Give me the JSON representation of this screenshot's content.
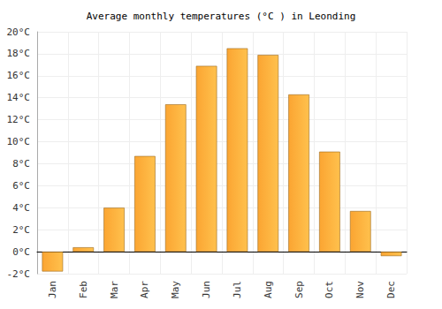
{
  "chart_data": {
    "type": "bar",
    "title": "Average monthly temperatures (°C ) in Leonding",
    "categories": [
      "Jan",
      "Feb",
      "Mar",
      "Apr",
      "May",
      "Jun",
      "Jul",
      "Aug",
      "Sep",
      "Oct",
      "Nov",
      "Dec"
    ],
    "values": [
      -1.8,
      0.4,
      4.0,
      8.7,
      13.4,
      16.9,
      18.5,
      17.9,
      14.3,
      9.1,
      3.7,
      -0.4
    ],
    "color": "#fba532",
    "ylim": [
      -2,
      20
    ],
    "yticks": [
      {
        "value": -2,
        "label": "-2°C"
      },
      {
        "value": 0,
        "label": "0°C"
      },
      {
        "value": 2,
        "label": "2°C"
      },
      {
        "value": 4,
        "label": "4°C"
      },
      {
        "value": 6,
        "label": "6°C"
      },
      {
        "value": 8,
        "label": "8°C"
      },
      {
        "value": 10,
        "label": "10°C"
      },
      {
        "value": 12,
        "label": "12°C"
      },
      {
        "value": 14,
        "label": "14°C"
      },
      {
        "value": 16,
        "label": "16°C"
      },
      {
        "value": 18,
        "label": "18°C"
      },
      {
        "value": 20,
        "label": "20°C"
      }
    ],
    "grid": true
  }
}
